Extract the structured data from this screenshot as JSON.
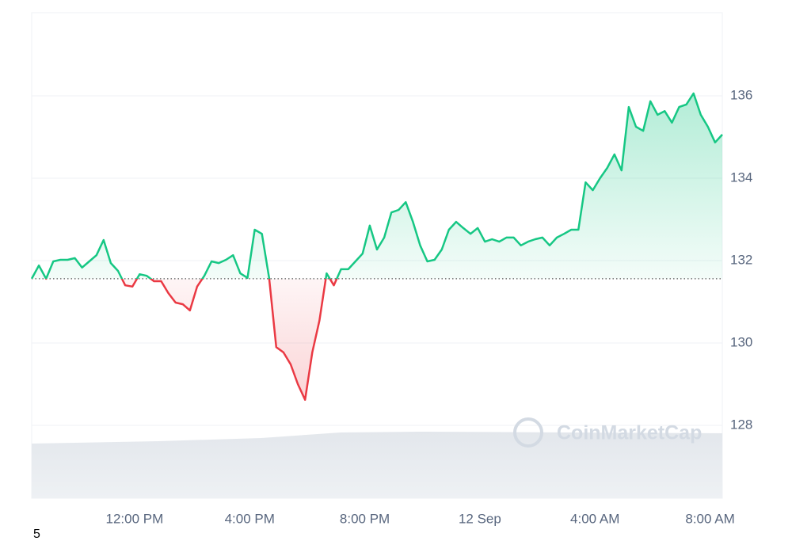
{
  "chart_data": {
    "type": "line",
    "values": [
      131.56,
      131.88,
      131.56,
      131.98,
      132.02,
      132.02,
      132.06,
      131.83,
      131.98,
      132.13,
      132.5,
      131.94,
      131.75,
      131.4,
      131.37,
      131.67,
      131.63,
      131.5,
      131.5,
      131.21,
      130.98,
      130.94,
      130.79,
      131.37,
      131.63,
      131.98,
      131.94,
      132.02,
      132.13,
      131.69,
      131.58,
      132.75,
      132.65,
      131.58,
      129.9,
      129.77,
      129.48,
      129.0,
      128.62,
      129.77,
      130.54,
      131.69,
      131.4,
      131.79,
      131.79,
      131.98,
      132.17,
      132.85,
      132.27,
      132.56,
      133.17,
      133.23,
      133.42,
      132.94,
      132.37,
      131.98,
      132.02,
      132.27,
      132.75,
      132.94,
      132.79,
      132.65,
      132.79,
      132.46,
      132.52,
      132.46,
      132.56,
      132.56,
      132.37,
      132.46,
      132.52,
      132.56,
      132.37,
      132.56,
      132.65,
      132.75,
      132.75,
      133.9,
      133.71,
      134.0,
      134.25,
      134.58,
      134.19,
      135.73,
      135.25,
      135.15,
      135.87,
      135.54,
      135.63,
      135.35,
      135.73,
      135.79,
      136.06,
      135.54,
      135.25,
      134.87,
      135.06
    ],
    "baseline": 131.56,
    "up_color": "#16c784",
    "down_color": "#ea3943",
    "xlim": [
      0,
      96
    ],
    "xticks": [
      {
        "value": 14.3,
        "label": "12:00 PM"
      },
      {
        "value": 30.3,
        "label": "4:00 PM"
      },
      {
        "value": 46.3,
        "label": "8:00 PM"
      },
      {
        "value": 62.3,
        "label": "12 Sep"
      },
      {
        "value": 78.3,
        "label": "4:00 AM"
      },
      {
        "value": 94.3,
        "label": "8:00 AM"
      }
    ],
    "ylim": [
      126.23,
      138.02
    ],
    "yticks": [
      128,
      130,
      132,
      134,
      136
    ],
    "grid": true,
    "watermark": "CoinMarketCap"
  },
  "footer_text": "5"
}
